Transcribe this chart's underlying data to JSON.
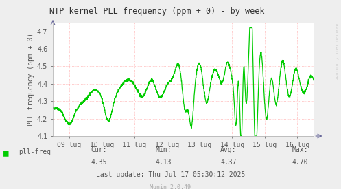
{
  "title": "NTP kernel PLL frequency (ppm + 0) - by week",
  "ylabel": "PLL frequency (ppm + 0)",
  "right_label": "RRDTOOL / TOBI OETIKER",
  "ylim": [
    4.1,
    4.75
  ],
  "yticks": [
    4.1,
    4.2,
    4.3,
    4.4,
    4.5,
    4.6,
    4.7
  ],
  "xlabels": [
    "09 lug",
    "10 lug",
    "11 lug",
    "12 lug",
    "13 lug",
    "14 lug",
    "15 lug",
    "16 lug"
  ],
  "legend_label": "pll-freq",
  "legend_color": "#00cc00",
  "cur": "4.35",
  "min": "4.13",
  "avg": "4.37",
  "max": "4.70",
  "last_update": "Last update: Thu Jul 17 05:30:12 2025",
  "munin_version": "Munin 2.0.49",
  "line_color": "#00cc00",
  "bg_color": "#EEEEEE",
  "plot_bg_color": "#FFFFFF",
  "grid_color": "#FF9999",
  "border_color": "#AAAAAA",
  "axis_arrow_color": "#666699",
  "text_color": "#555555",
  "title_color": "#333333"
}
